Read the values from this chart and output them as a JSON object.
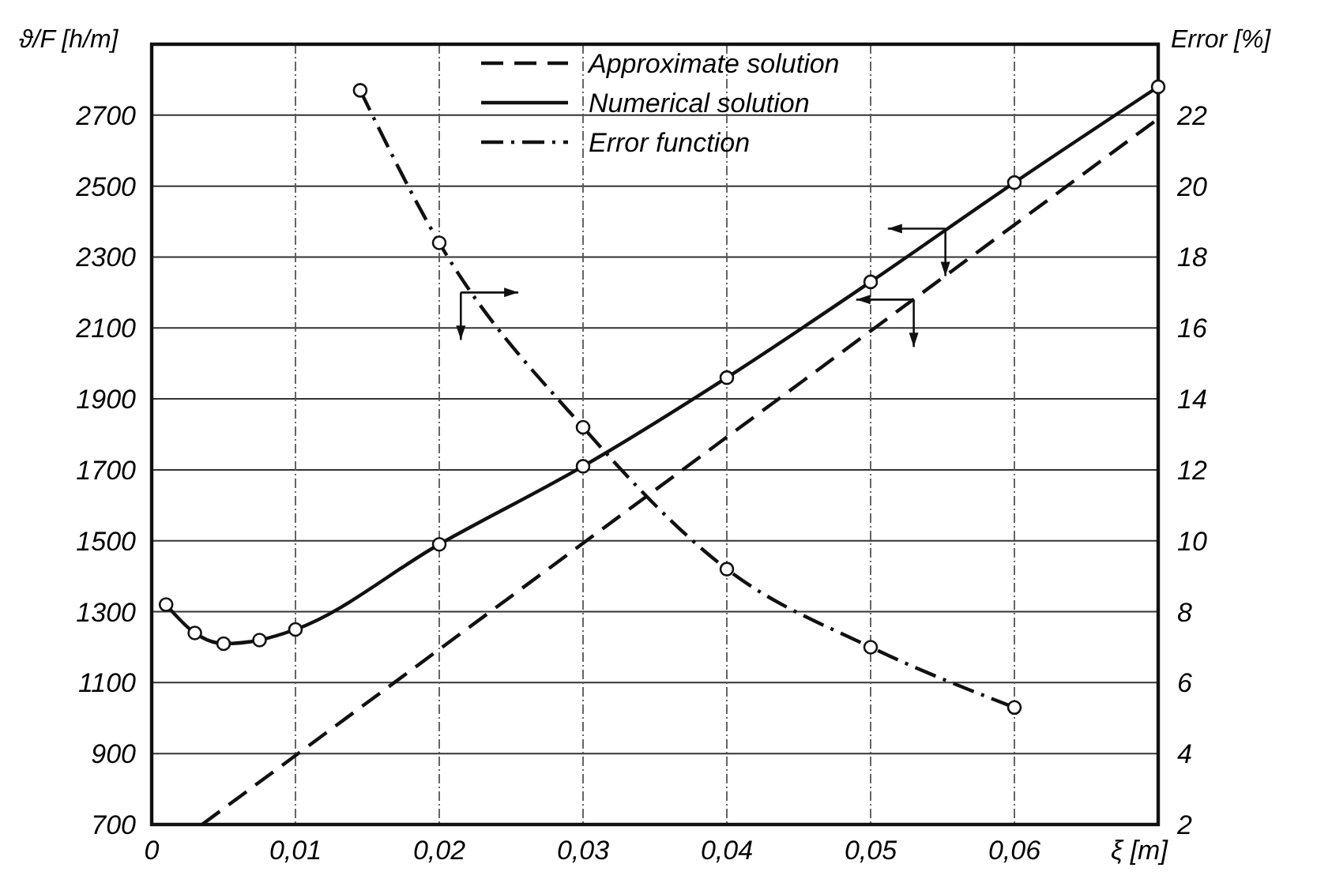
{
  "chart_data": {
    "type": "line",
    "xlabel": "ξ [m]",
    "ylabel": "ϑ/F [h/m]",
    "y2label": "Error [%]",
    "xlim": [
      0,
      0.07
    ],
    "xticks": [
      0,
      {
        "value": 0.01,
        "label": "0,01"
      },
      {
        "value": 0.02,
        "label": "0,02"
      },
      {
        "value": 0.03,
        "label": "0,03"
      },
      {
        "value": 0.04,
        "label": "0,04"
      },
      {
        "value": 0.05,
        "label": "0,05"
      },
      {
        "value": 0.06,
        "label": "0,06"
      }
    ],
    "ylim": [
      700,
      2900
    ],
    "yticks": [
      700,
      900,
      1100,
      1300,
      1500,
      1700,
      1900,
      2100,
      2300,
      2500,
      2700
    ],
    "y2lim": [
      2,
      24
    ],
    "y2ticks": [
      2,
      4,
      6,
      8,
      10,
      12,
      14,
      16,
      18,
      20,
      22
    ],
    "grid": true,
    "legend": "top",
    "series": [
      {
        "name": "Approximate solution",
        "color": "#111111",
        "line_style": "dashed",
        "marker": "none",
        "x": [
          0.0035,
          0.07
        ],
        "values": [
          700,
          2690
        ]
      },
      {
        "name": "Numerical solution",
        "color": "#111111",
        "line_style": "solid",
        "marker": "circle",
        "x": [
          0.001,
          0.003,
          0.005,
          0.0075,
          0.01,
          0.02,
          0.03,
          0.04,
          0.05,
          0.06,
          0.07
        ],
        "values": [
          1320,
          1240,
          1210,
          1220,
          1250,
          1490,
          1710,
          1960,
          2230,
          2510,
          2780
        ]
      },
      {
        "name": "Error function",
        "color": "#111111",
        "line_style": "dashdot",
        "marker": "circle",
        "axis": "y2",
        "x": [
          0.0145,
          0.02,
          0.03,
          0.04,
          0.05,
          0.06
        ],
        "values": [
          22.7,
          18.4,
          13.2,
          9.2,
          7.0,
          5.3
        ]
      }
    ]
  }
}
